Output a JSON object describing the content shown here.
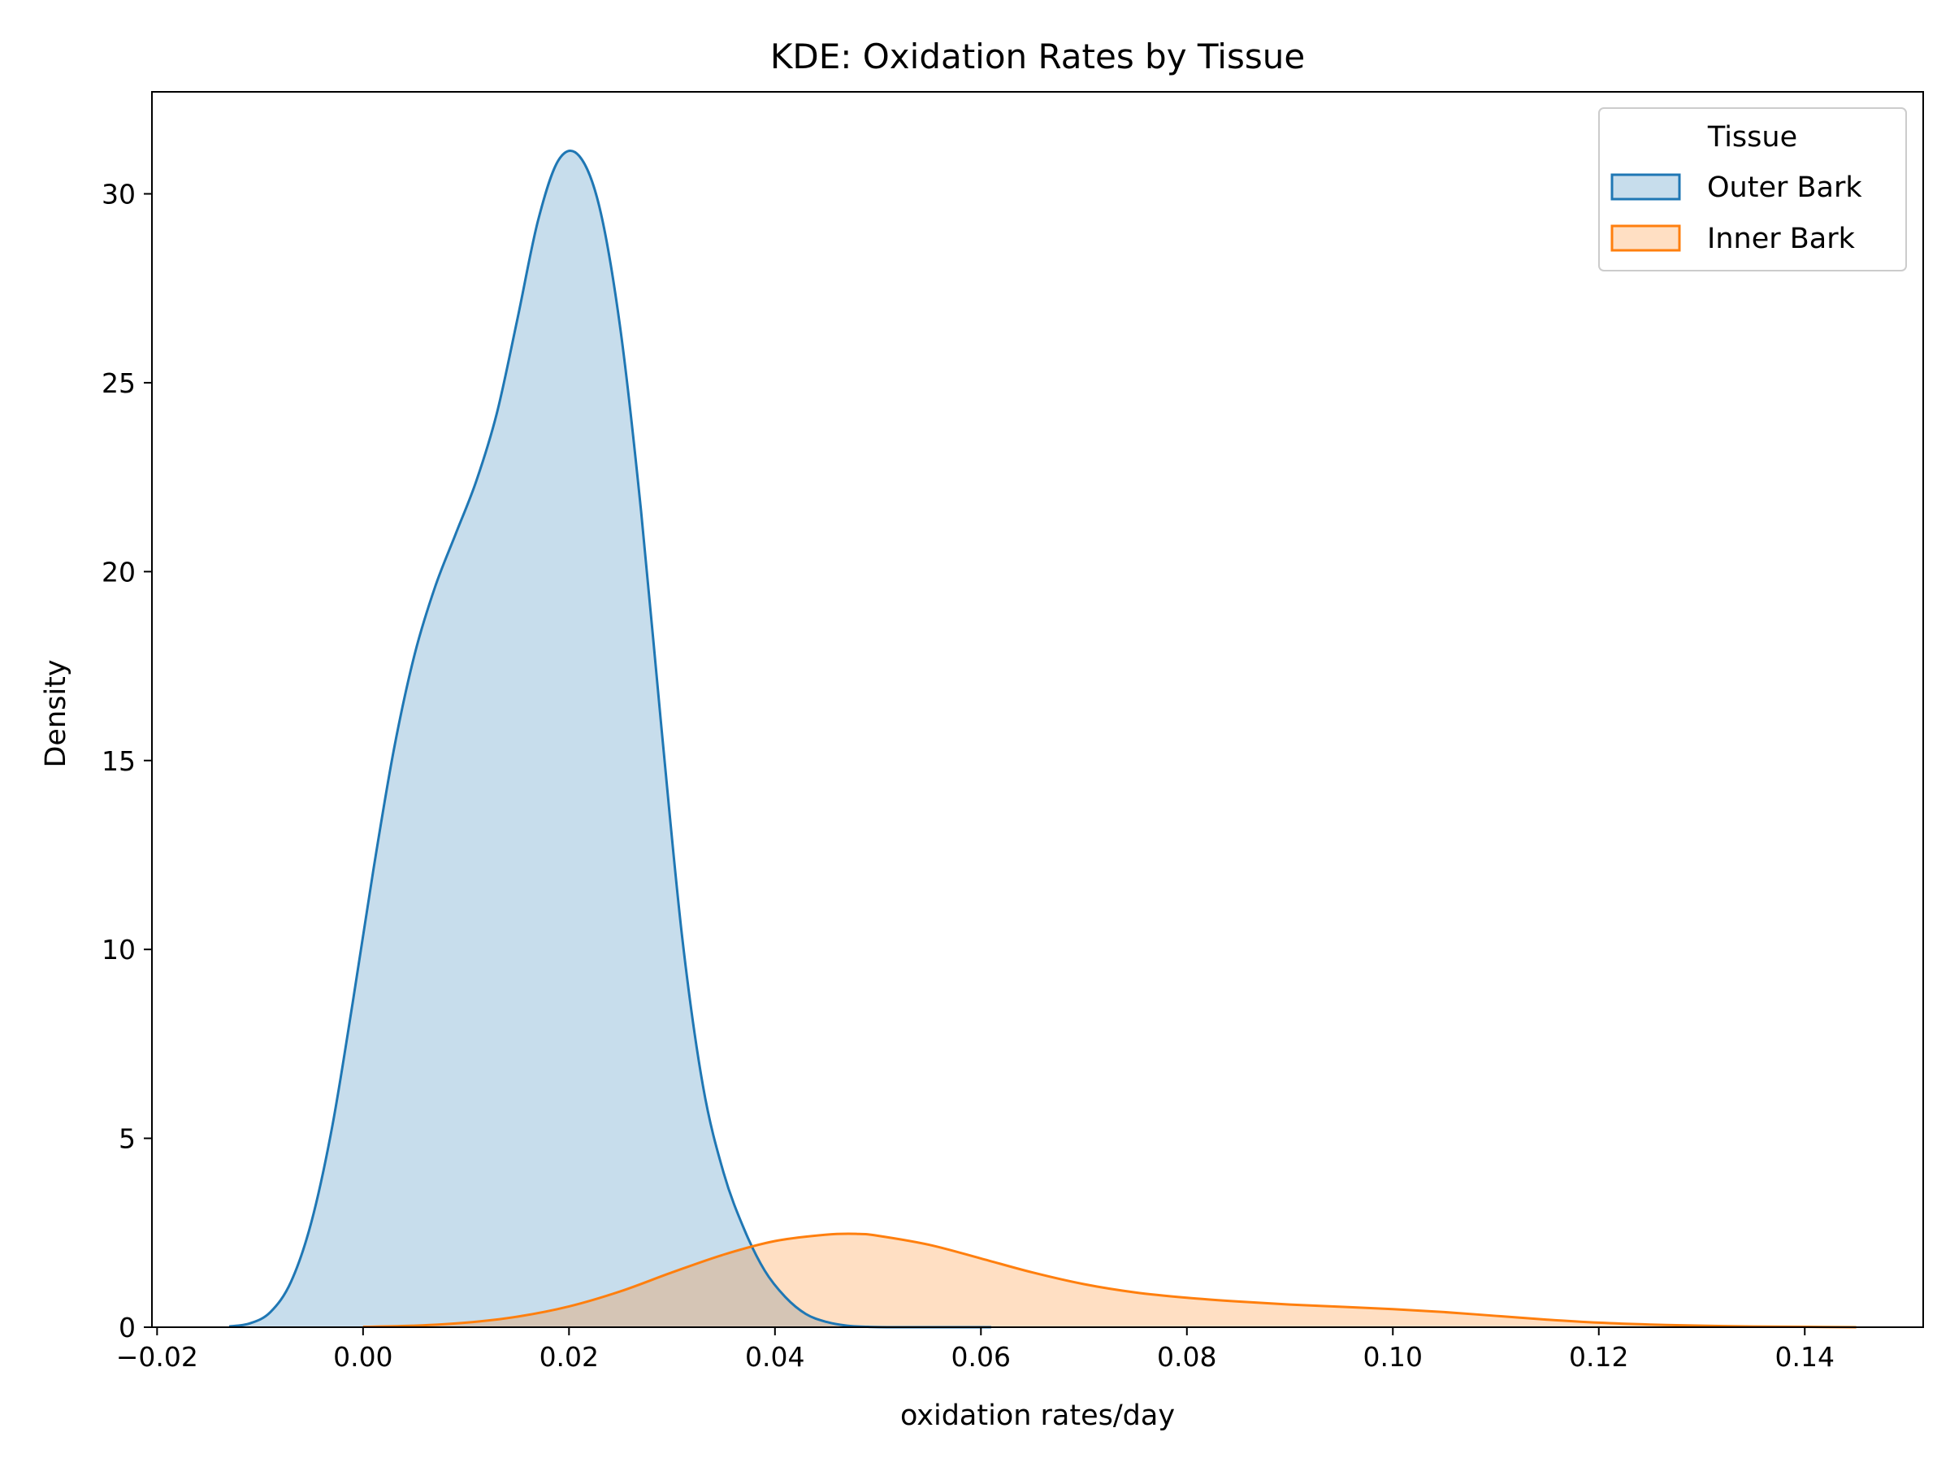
{
  "chart_data": {
    "type": "area",
    "title": "KDE: Oxidation Rates by Tissue",
    "xlabel": "oxidation rates/day",
    "ylabel": "Density",
    "xlim": [
      -0.0205,
      0.1515
    ],
    "ylim": [
      0,
      32.7
    ],
    "xticks": [
      -0.02,
      0.0,
      0.02,
      0.04,
      0.06,
      0.08,
      0.1,
      0.12,
      0.14
    ],
    "xtick_labels": [
      "−0.02",
      "0.00",
      "0.02",
      "0.04",
      "0.06",
      "0.08",
      "0.10",
      "0.12",
      "0.14"
    ],
    "yticks": [
      0,
      5,
      10,
      15,
      20,
      25,
      30
    ],
    "ytick_labels": [
      "0",
      "5",
      "10",
      "15",
      "20",
      "25",
      "30"
    ],
    "grid": false,
    "legend": {
      "title": "Tissue",
      "placement": "top-right"
    },
    "series": [
      {
        "name": "Outer Bark",
        "color": "#1f77b4",
        "fill": "#c6dbed",
        "x": [
          -0.013,
          -0.011,
          -0.009,
          -0.007,
          -0.005,
          -0.003,
          -0.001,
          0.001,
          0.003,
          0.005,
          0.007,
          0.009,
          0.011,
          0.013,
          0.015,
          0.017,
          0.019,
          0.021,
          0.023,
          0.025,
          0.027,
          0.029,
          0.031,
          0.033,
          0.035,
          0.037,
          0.039,
          0.041,
          0.043,
          0.045,
          0.047,
          0.049,
          0.051,
          0.053,
          0.055,
          0.057,
          0.059,
          0.061
        ],
        "y": [
          0.02,
          0.1,
          0.4,
          1.2,
          2.8,
          5.3,
          8.6,
          12.1,
          15.3,
          17.8,
          19.6,
          21.0,
          22.4,
          24.2,
          26.7,
          29.3,
          30.9,
          31.0,
          29.6,
          26.4,
          21.6,
          15.8,
          10.3,
          6.4,
          4.1,
          2.6,
          1.5,
          0.8,
          0.35,
          0.14,
          0.04,
          0.01,
          0.0,
          0.0,
          0.0,
          0.0,
          0.0,
          0.0
        ]
      },
      {
        "name": "Inner Bark",
        "color": "#ff7f0e",
        "fill": "#fdd9bb",
        "x": [
          0.0,
          0.005,
          0.01,
          0.015,
          0.02,
          0.025,
          0.03,
          0.035,
          0.04,
          0.045,
          0.048,
          0.05,
          0.055,
          0.06,
          0.065,
          0.07,
          0.075,
          0.08,
          0.085,
          0.09,
          0.095,
          0.1,
          0.105,
          0.11,
          0.115,
          0.12,
          0.125,
          0.13,
          0.135,
          0.14,
          0.145
        ],
        "y": [
          0.01,
          0.04,
          0.12,
          0.28,
          0.55,
          0.95,
          1.45,
          1.92,
          2.28,
          2.45,
          2.47,
          2.42,
          2.18,
          1.82,
          1.45,
          1.14,
          0.92,
          0.78,
          0.68,
          0.6,
          0.54,
          0.48,
          0.4,
          0.3,
          0.2,
          0.12,
          0.07,
          0.04,
          0.02,
          0.01,
          0.0
        ]
      }
    ]
  }
}
